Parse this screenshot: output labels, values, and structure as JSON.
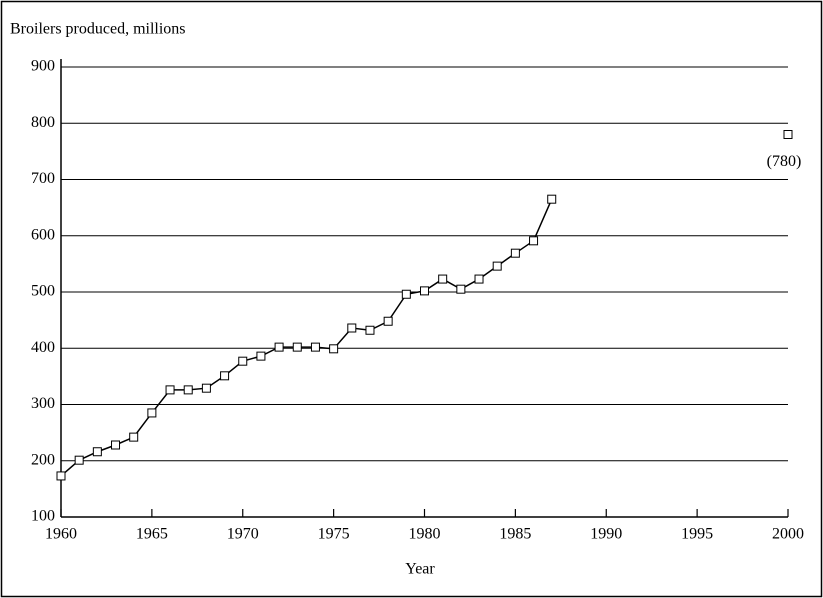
{
  "chart_data": {
    "type": "line",
    "title": "Broilers produced, millions",
    "xlabel": "Year",
    "x": [
      1960,
      1961,
      1962,
      1963,
      1964,
      1965,
      1966,
      1967,
      1968,
      1969,
      1970,
      1971,
      1972,
      1973,
      1974,
      1975,
      1976,
      1977,
      1978,
      1979,
      1980,
      1981,
      1982,
      1983,
      1984,
      1985,
      1986,
      1987
    ],
    "values": [
      173,
      201,
      216,
      228,
      242,
      285,
      326,
      326,
      329,
      351,
      377,
      386,
      402,
      402,
      402,
      399,
      436,
      432,
      448,
      496,
      502,
      523,
      505,
      523,
      546,
      569,
      591,
      665
    ],
    "projection": {
      "x": 2000,
      "value": 780,
      "value_label": "(780)"
    },
    "color": "#000000",
    "xlim": [
      1960,
      2000
    ],
    "xticks": [
      1960,
      1965,
      1970,
      1975,
      1980,
      1985,
      1990,
      1995,
      2000
    ],
    "ylim": [
      100,
      900
    ],
    "yticks": [
      100,
      200,
      300,
      400,
      500,
      600,
      700,
      800,
      900
    ],
    "grid": true
  }
}
